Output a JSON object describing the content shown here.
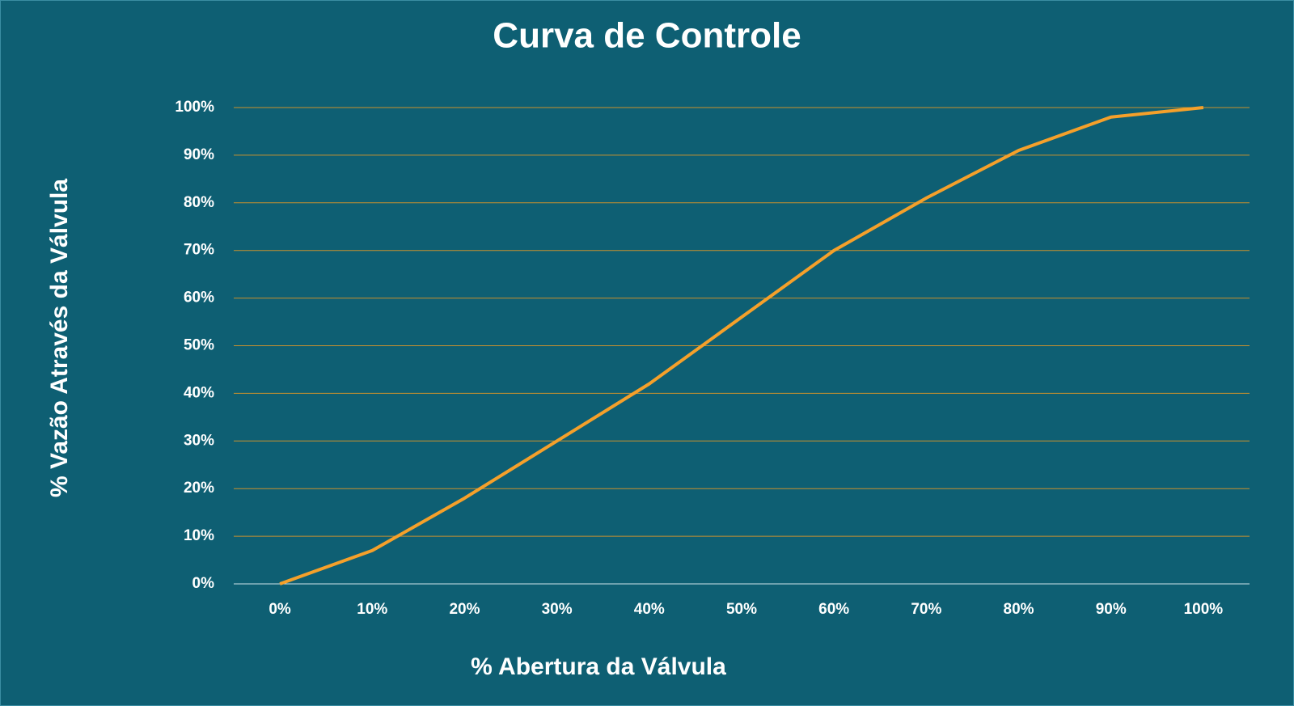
{
  "chart_data": {
    "type": "line",
    "title": "Curva de Controle",
    "x_label": "% Abertura da Válvula",
    "y_label": "% Vazão Através da Válvula",
    "categories": [
      "0%",
      "10%",
      "20%",
      "30%",
      "40%",
      "50%",
      "60%",
      "70%",
      "80%",
      "90%",
      "100%"
    ],
    "series": [
      {
        "name": "Curva de Controle",
        "color": "#f5a02a",
        "values": [
          0,
          7,
          18,
          30,
          42,
          56,
          70,
          81,
          91,
          98,
          100
        ]
      }
    ],
    "ylim": [
      0,
      100
    ],
    "yticks": [
      {
        "value": 0,
        "label": "0%"
      },
      {
        "value": 10,
        "label": "10%"
      },
      {
        "value": 20,
        "label": "20%"
      },
      {
        "value": 30,
        "label": "30%"
      },
      {
        "value": 40,
        "label": "40%"
      },
      {
        "value": 50,
        "label": "50%"
      },
      {
        "value": 60,
        "label": "60%"
      },
      {
        "value": 70,
        "label": "70%"
      },
      {
        "value": 80,
        "label": "80%"
      },
      {
        "value": 90,
        "label": "90%"
      },
      {
        "value": 100,
        "label": "100%"
      }
    ],
    "grid": true
  }
}
